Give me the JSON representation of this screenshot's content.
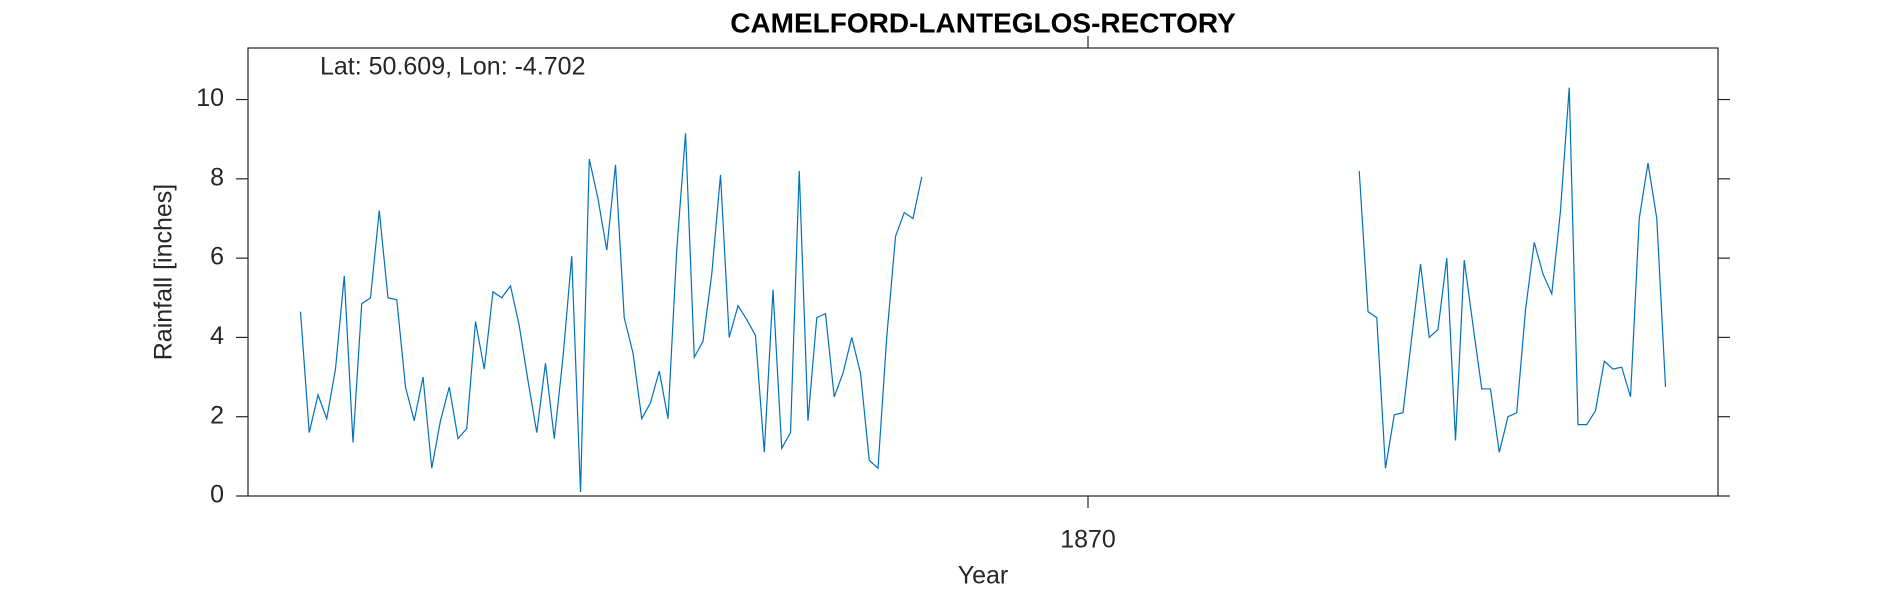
{
  "chart_data": {
    "type": "line",
    "title": "CAMELFORD-LANTEGLOS-RECTORY",
    "annotation": "Lat: 50.609, Lon: -4.702",
    "xlabel": "Year",
    "ylabel": "Rainfall [inches]",
    "color": "#0072bd",
    "xlim": [
      1862,
      1876
    ],
    "xticks": [
      1870
    ],
    "ylim": [
      0,
      11.3
    ],
    "yticks": [
      0,
      2,
      4,
      6,
      8,
      10
    ],
    "x": [
      1862.5,
      1862.583,
      1862.667,
      1862.75,
      1862.833,
      1862.917,
      1863.0,
      1863.083,
      1863.167,
      1863.25,
      1863.333,
      1863.417,
      1863.5,
      1863.583,
      1863.667,
      1863.75,
      1863.833,
      1863.917,
      1864.0,
      1864.083,
      1864.167,
      1864.25,
      1864.333,
      1864.417,
      1864.5,
      1864.583,
      1864.667,
      1864.75,
      1864.833,
      1864.917,
      1865.0,
      1865.083,
      1865.167,
      1865.25,
      1865.333,
      1865.417,
      1865.5,
      1865.583,
      1865.667,
      1865.75,
      1865.833,
      1865.917,
      1866.0,
      1866.083,
      1866.167,
      1866.25,
      1866.333,
      1866.417,
      1866.5,
      1866.583,
      1866.667,
      1866.75,
      1866.833,
      1866.917,
      1867.0,
      1867.083,
      1867.167,
      1867.25,
      1867.333,
      1867.417,
      1867.5,
      1867.583,
      1867.667,
      1867.75,
      1867.833,
      1867.917,
      1868.0,
      1868.083,
      1868.167,
      1868.25,
      1868.333,
      1868.417,
      1870,
      1872.583,
      1872.667,
      1872.75,
      1872.833,
      1872.917,
      1873.0,
      1873.083,
      1873.167,
      1873.25,
      1873.333,
      1873.417,
      1873.5,
      1873.583,
      1873.667,
      1873.75,
      1873.833,
      1873.917,
      1874.0,
      1874.083,
      1874.167,
      1874.25,
      1874.333,
      1874.417,
      1874.5,
      1874.583,
      1874.667,
      1874.75,
      1874.833,
      1874.917,
      1875.0,
      1875.083,
      1875.167,
      1875.25,
      1875.333,
      1875.417,
      1875.5
    ],
    "values": [
      4.65,
      1.6,
      2.55,
      1.95,
      3.2,
      5.55,
      1.35,
      4.85,
      5.0,
      7.2,
      5.0,
      4.95,
      2.75,
      1.9,
      3.0,
      0.7,
      1.9,
      2.75,
      1.45,
      1.7,
      4.4,
      3.2,
      5.15,
      5.0,
      5.3,
      4.3,
      2.9,
      1.6,
      3.35,
      1.45,
      3.5,
      6.05,
      0.1,
      8.5,
      7.5,
      6.2,
      8.35,
      4.5,
      3.6,
      1.95,
      2.35,
      3.15,
      1.95,
      6.2,
      9.15,
      3.5,
      3.9,
      5.6,
      8.1,
      4.0,
      4.8,
      4.45,
      4.05,
      1.1,
      5.2,
      1.2,
      1.6,
      8.2,
      1.9,
      4.5,
      4.6,
      2.5,
      3.1,
      4.0,
      3.1,
      0.9,
      0.7,
      4.0,
      6.55,
      7.15,
      7.0,
      8.05,
      null,
      8.2,
      4.65,
      4.5,
      0.7,
      2.05,
      2.1,
      4.0,
      5.85,
      4.0,
      4.2,
      6.0,
      1.4,
      5.95,
      4.3,
      2.7,
      2.7,
      1.1,
      2.0,
      2.1,
      4.7,
      6.4,
      5.6,
      5.1,
      7.2,
      10.3,
      1.8,
      1.8,
      2.15,
      3.4,
      3.2,
      3.25,
      2.5,
      7.0,
      8.4,
      7.0,
      2.75
    ]
  }
}
